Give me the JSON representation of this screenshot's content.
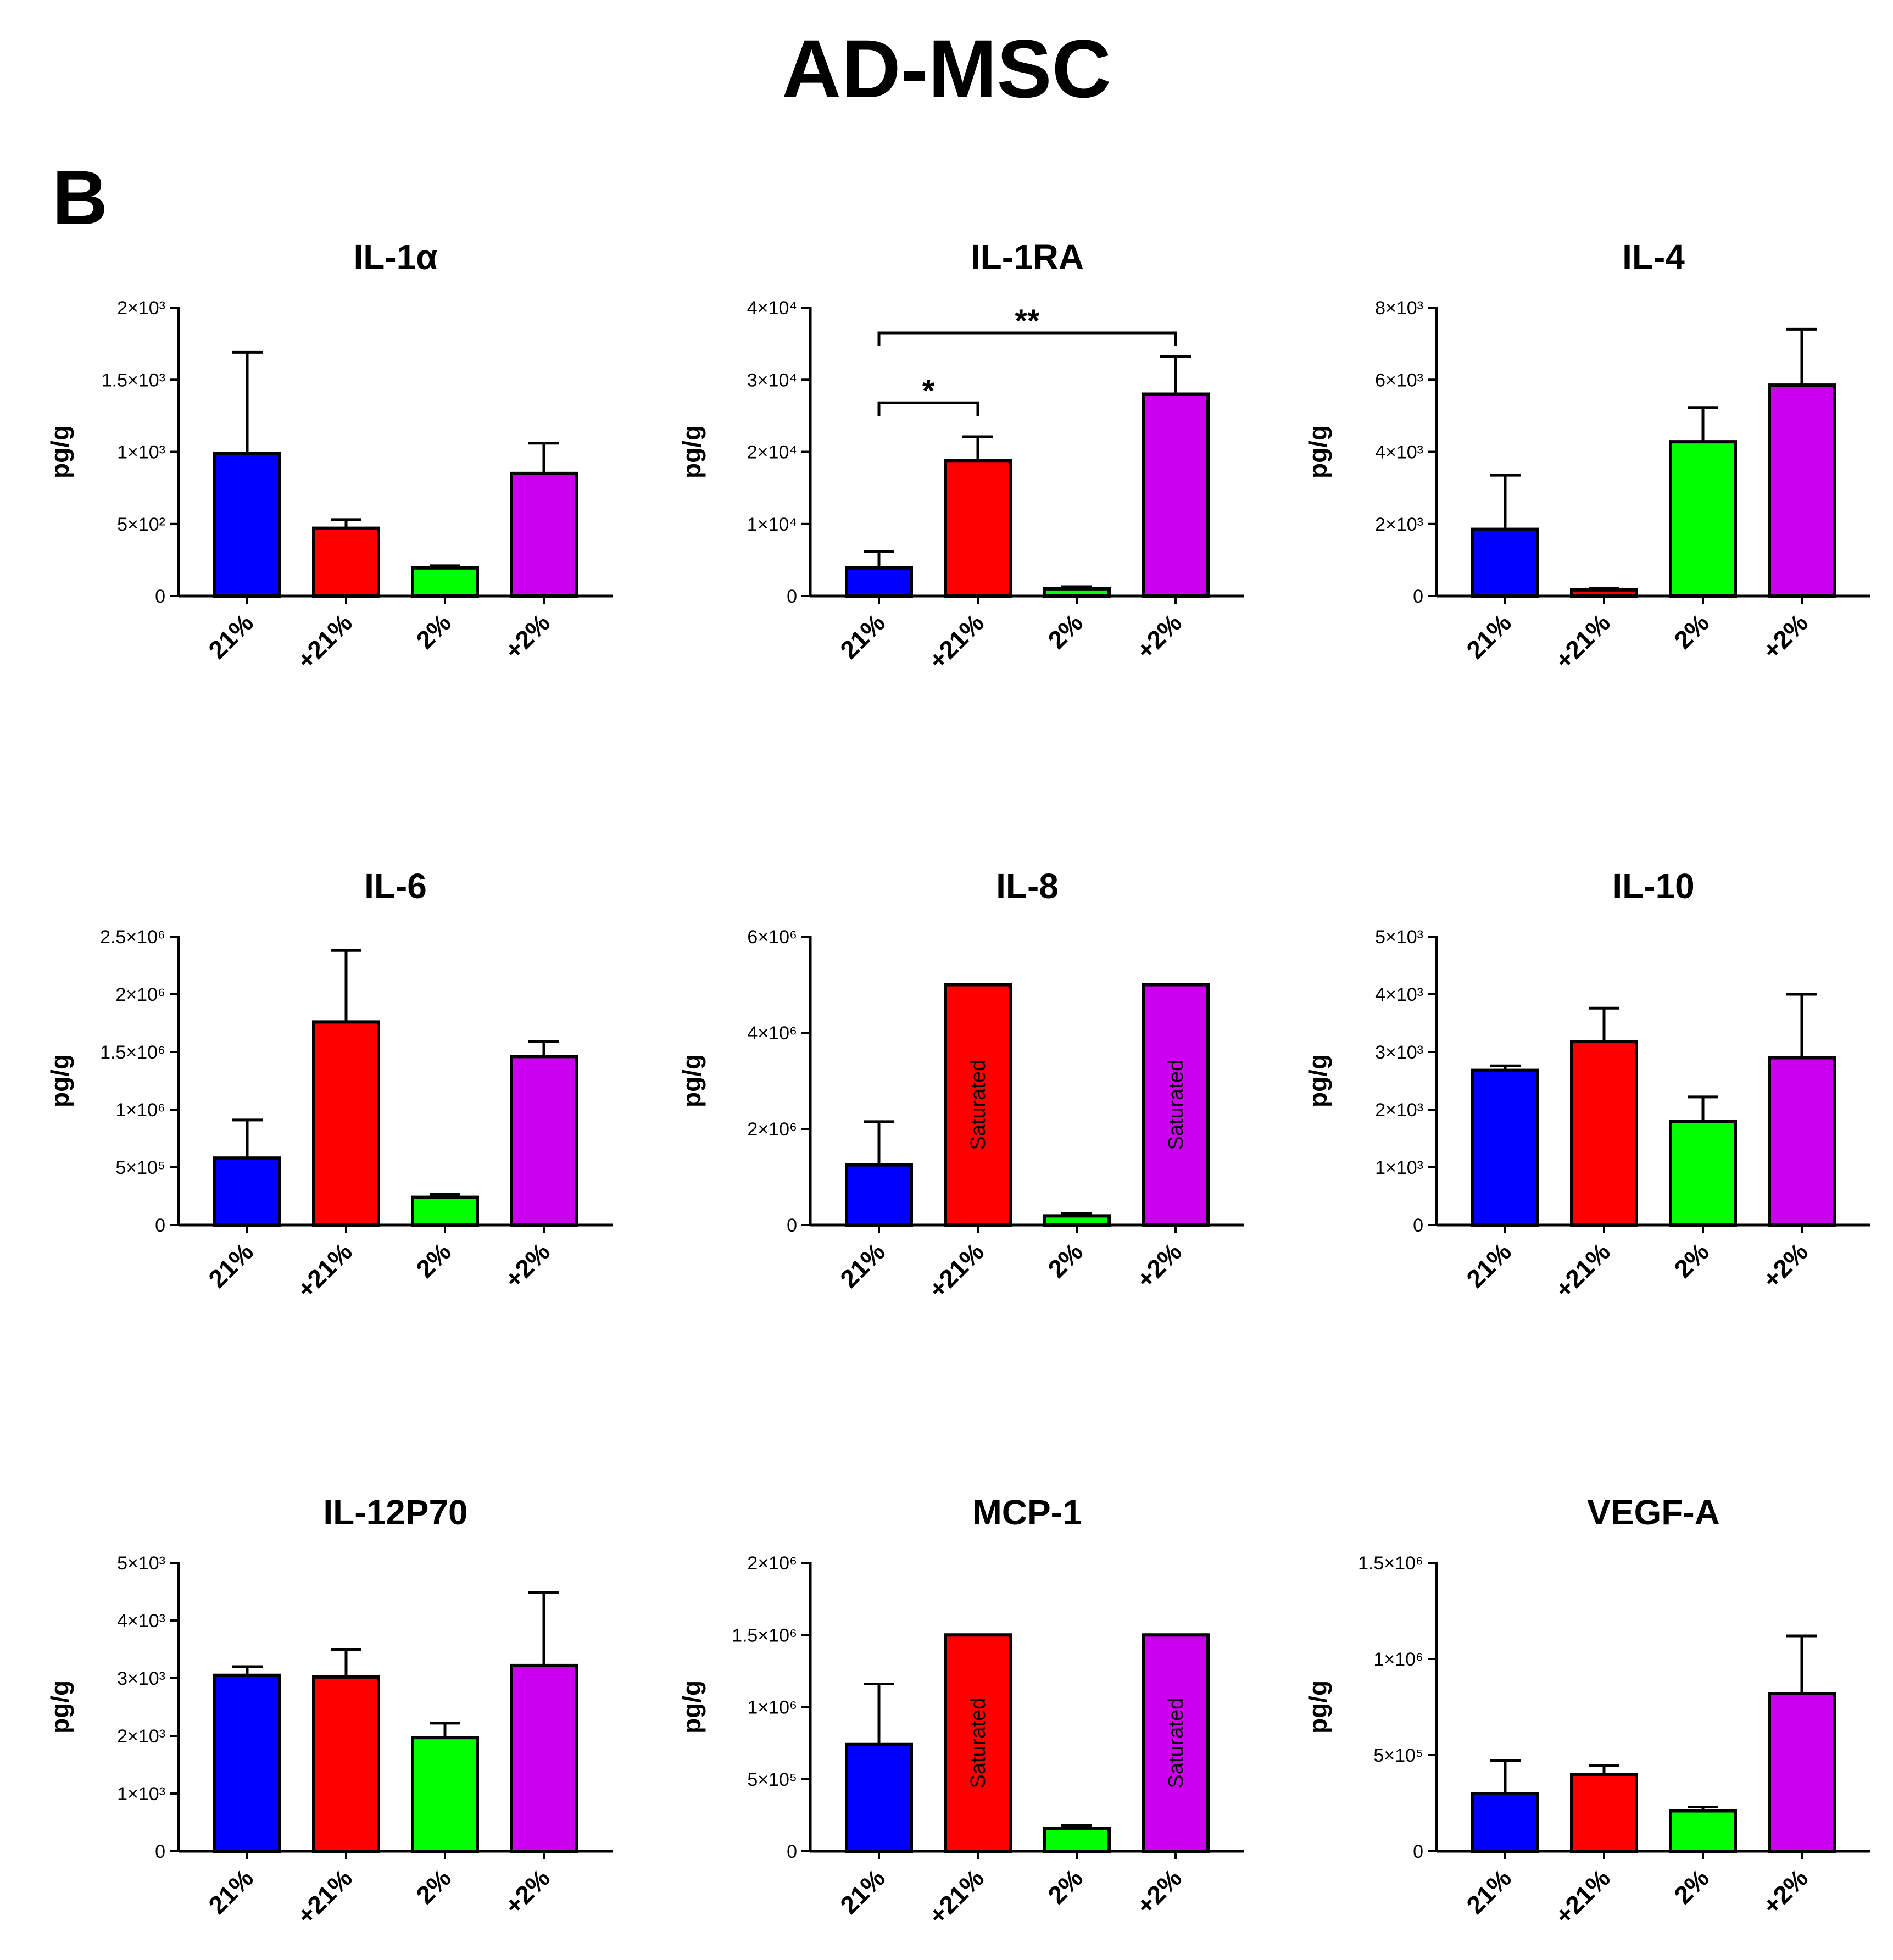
{
  "figure": {
    "title": "AD-MSC",
    "panel_label": "B"
  },
  "colors": {
    "bars": [
      "#0000ff",
      "#ff0000",
      "#00ff00",
      "#cc00ee"
    ],
    "outline": "#000000"
  },
  "chart_data": [
    {
      "type": "bar",
      "title": "IL-1α",
      "ylabel": "pg/g",
      "ylim": [
        0,
        2000
      ],
      "yticks": [
        0,
        500,
        1000,
        1500,
        2000
      ],
      "yticklabels": [
        "0",
        "5×10²",
        "1×10³",
        "1.5×10³",
        "2×10³"
      ],
      "categories": [
        "21%",
        "+21%",
        "2%",
        "+2%"
      ],
      "values": [
        990,
        470,
        195,
        850
      ],
      "errors": [
        700,
        60,
        15,
        210
      ],
      "annotations": [],
      "significance": []
    },
    {
      "type": "bar",
      "title": "IL-1RA",
      "ylabel": "pg/g",
      "ylim": [
        0,
        40000
      ],
      "yticks": [
        0,
        10000,
        20000,
        30000,
        40000
      ],
      "yticklabels": [
        "0",
        "1×10⁴",
        "2×10⁴",
        "3×10⁴",
        "4×10⁴"
      ],
      "categories": [
        "21%",
        "+21%",
        "2%",
        "+2%"
      ],
      "values": [
        3900,
        18800,
        1000,
        28000
      ],
      "errors": [
        2300,
        3300,
        300,
        5200
      ],
      "annotations": [],
      "significance": [
        {
          "from": 0,
          "to": 1,
          "label": "*",
          "y": 26800
        },
        {
          "from": 0,
          "to": 3,
          "label": "**",
          "y": 36500
        }
      ]
    },
    {
      "type": "bar",
      "title": "IL-4",
      "ylabel": "pg/g",
      "ylim": [
        0,
        8000
      ],
      "yticks": [
        0,
        2000,
        4000,
        6000,
        8000
      ],
      "yticklabels": [
        "0",
        "2×10³",
        "4×10³",
        "6×10³",
        "8×10³"
      ],
      "categories": [
        "21%",
        "+21%",
        "2%",
        "+2%"
      ],
      "values": [
        1850,
        170,
        4280,
        5850
      ],
      "errors": [
        1500,
        50,
        950,
        1550
      ],
      "annotations": [],
      "significance": []
    },
    {
      "type": "bar",
      "title": "IL-6",
      "ylabel": "pg/g",
      "ylim": [
        0,
        2500000
      ],
      "yticks": [
        0,
        500000,
        1000000,
        1500000,
        2000000,
        2500000
      ],
      "yticklabels": [
        "0",
        "5×10⁵",
        "1×10⁶",
        "1.5×10⁶",
        "2×10⁶",
        "2.5×10⁶"
      ],
      "categories": [
        "21%",
        "+21%",
        "2%",
        "+2%"
      ],
      "values": [
        580000,
        1760000,
        240000,
        1460000
      ],
      "errors": [
        330000,
        620000,
        25000,
        130000
      ],
      "annotations": [],
      "significance": []
    },
    {
      "type": "bar",
      "title": "IL-8",
      "ylabel": "pg/g",
      "ylim": [
        0,
        6000000
      ],
      "yticks": [
        0,
        2000000,
        4000000,
        6000000
      ],
      "yticklabels": [
        "0",
        "2×10⁶",
        "4×10⁶",
        "6×10⁶"
      ],
      "categories": [
        "21%",
        "+21%",
        "2%",
        "+2%"
      ],
      "values": [
        1250000,
        5000000,
        190000,
        5000000
      ],
      "errors": [
        900000,
        0,
        50000,
        0
      ],
      "annotations": [
        "",
        "Saturated",
        "",
        "Saturated"
      ],
      "significance": []
    },
    {
      "type": "bar",
      "title": "IL-10",
      "ylabel": "pg/g",
      "ylim": [
        0,
        5000
      ],
      "yticks": [
        0,
        1000,
        2000,
        3000,
        4000,
        5000
      ],
      "yticklabels": [
        "0",
        "1×10³",
        "2×10³",
        "3×10³",
        "4×10³",
        "5×10³"
      ],
      "categories": [
        "21%",
        "+21%",
        "2%",
        "+2%"
      ],
      "values": [
        2680,
        3180,
        1800,
        2900
      ],
      "errors": [
        80,
        580,
        420,
        1100
      ],
      "annotations": [],
      "significance": []
    },
    {
      "type": "bar",
      "title": "IL-12P70",
      "ylabel": "pg/g",
      "ylim": [
        0,
        5000
      ],
      "yticks": [
        0,
        1000,
        2000,
        3000,
        4000,
        5000
      ],
      "yticklabels": [
        "0",
        "1×10³",
        "2×10³",
        "3×10³",
        "4×10³",
        "5×10³"
      ],
      "categories": [
        "21%",
        "+21%",
        "2%",
        "+2%"
      ],
      "values": [
        3050,
        3020,
        1970,
        3220
      ],
      "errors": [
        150,
        480,
        250,
        1270
      ],
      "annotations": [],
      "significance": []
    },
    {
      "type": "bar",
      "title": "MCP-1",
      "ylabel": "pg/g",
      "ylim": [
        0,
        2000000
      ],
      "yticks": [
        0,
        500000,
        1000000,
        1500000,
        2000000
      ],
      "yticklabels": [
        "0",
        "5×10⁵",
        "1×10⁶",
        "1.5×10⁶",
        "2×10⁶"
      ],
      "categories": [
        "21%",
        "+21%",
        "2%",
        "+2%"
      ],
      "values": [
        740000,
        1500000,
        160000,
        1500000
      ],
      "errors": [
        420000,
        0,
        20000,
        0
      ],
      "annotations": [
        "",
        "Saturated",
        "",
        "Saturated"
      ],
      "significance": []
    },
    {
      "type": "bar",
      "title": "VEGF-A",
      "ylabel": "pg/g",
      "ylim": [
        0,
        1500000
      ],
      "yticks": [
        0,
        500000,
        1000000,
        1500000
      ],
      "yticklabels": [
        "0",
        "5×10⁵",
        "1×10⁶",
        "1.5×10⁶"
      ],
      "categories": [
        "21%",
        "+21%",
        "2%",
        "+2%"
      ],
      "values": [
        300000,
        400000,
        210000,
        820000
      ],
      "errors": [
        170000,
        45000,
        20000,
        300000
      ],
      "annotations": [],
      "significance": []
    }
  ]
}
